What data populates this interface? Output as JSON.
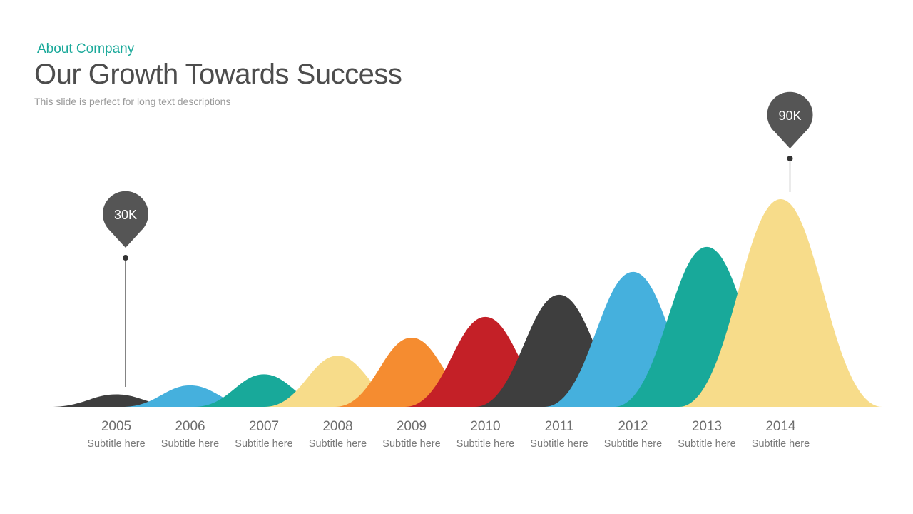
{
  "header": {
    "eyebrow": "About Company",
    "title": "Our Growth Towards Success",
    "subtitle": "This slide is perfect for long text descriptions"
  },
  "chart_data": {
    "type": "area",
    "categories": [
      "2005",
      "2006",
      "2007",
      "2008",
      "2009",
      "2010",
      "2011",
      "2012",
      "2013",
      "2014"
    ],
    "subtitles": [
      "Subtitle here",
      "Subtitle here",
      "Subtitle here",
      "Subtitle here",
      "Subtitle here",
      "Subtitle here",
      "Subtitle here",
      "Subtitle here",
      "Subtitle here",
      "Subtitle here"
    ],
    "values": [
      1.8,
      3.1,
      4.7,
      7.4,
      10.0,
      13.0,
      16.2,
      19.5,
      23.1,
      30.0
    ],
    "colors": [
      "#3e3e3e",
      "#45b0dd",
      "#18a99a",
      "#f7dc8a",
      "#f58c30",
      "#c42027",
      "#3e3e3e",
      "#45b0dd",
      "#18a99a",
      "#f7dc8a"
    ],
    "annotations": [
      {
        "category": "2005",
        "label": "30K"
      },
      {
        "category": "2014",
        "label": "90K"
      }
    ],
    "pin_color": "#555555"
  }
}
